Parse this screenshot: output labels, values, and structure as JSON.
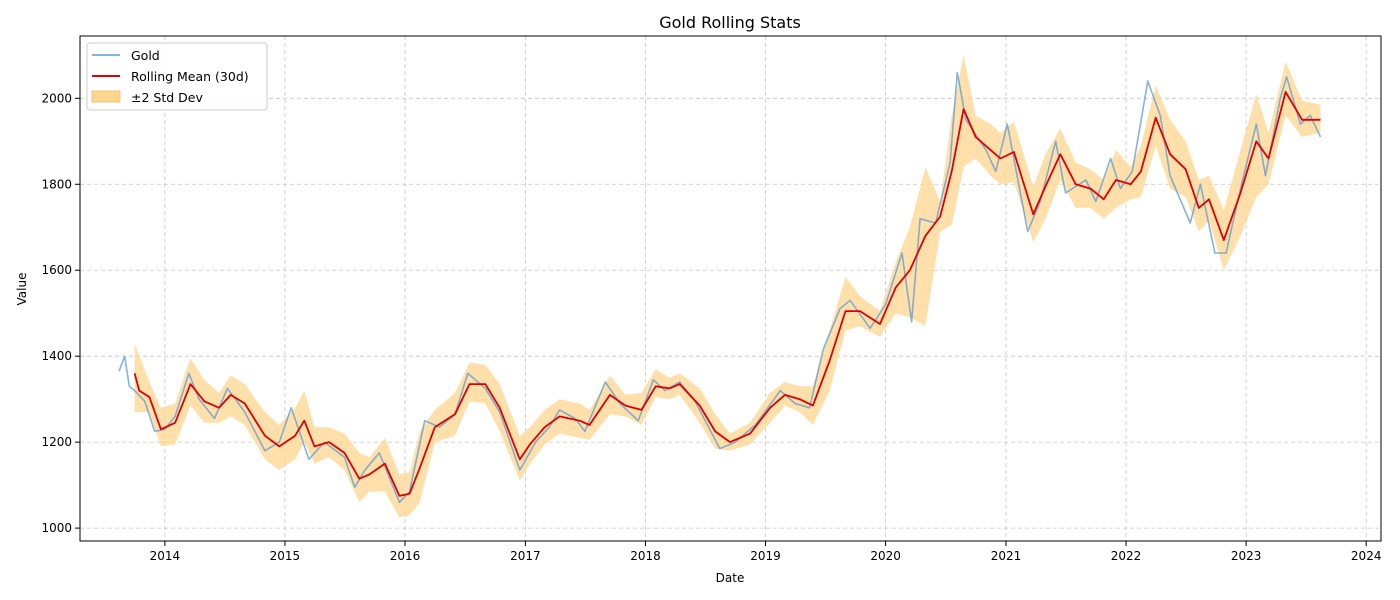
{
  "chart_data": {
    "type": "line",
    "title": "Gold Rolling Stats",
    "xlabel": "Date",
    "ylabel": "Value",
    "xlim": [
      "2013-04-18",
      "2024-02-15"
    ],
    "ylim": [
      970,
      2145
    ],
    "x_ticks": [
      "2014",
      "2015",
      "2016",
      "2017",
      "2018",
      "2019",
      "2020",
      "2021",
      "2022",
      "2023",
      "2024"
    ],
    "y_ticks": [
      1000,
      1200,
      1400,
      1600,
      1800,
      2000
    ],
    "grid": true,
    "legend_position": "top-left",
    "colors": {
      "price": "#5a9bd4",
      "mean": "#e00000",
      "band": "#ffd58f"
    },
    "series": [
      {
        "name": "Gold",
        "kind": "price-line",
        "points": [
          [
            "2013-08-15",
            1365
          ],
          [
            "2013-09-01",
            1400
          ],
          [
            "2013-09-15",
            1330
          ],
          [
            "2013-10-01",
            1320
          ],
          [
            "2013-11-01",
            1295
          ],
          [
            "2013-12-01",
            1225
          ],
          [
            "2014-01-01",
            1230
          ],
          [
            "2014-02-01",
            1260
          ],
          [
            "2014-03-15",
            1360
          ],
          [
            "2014-04-15",
            1300
          ],
          [
            "2014-06-01",
            1255
          ],
          [
            "2014-07-10",
            1325
          ],
          [
            "2014-09-01",
            1270
          ],
          [
            "2014-11-01",
            1180
          ],
          [
            "2014-12-15",
            1200
          ],
          [
            "2015-01-20",
            1280
          ],
          [
            "2015-03-15",
            1160
          ],
          [
            "2015-05-01",
            1200
          ],
          [
            "2015-07-01",
            1165
          ],
          [
            "2015-08-01",
            1095
          ],
          [
            "2015-09-01",
            1135
          ],
          [
            "2015-10-15",
            1175
          ],
          [
            "2015-12-15",
            1060
          ],
          [
            "2016-01-15",
            1085
          ],
          [
            "2016-03-01",
            1250
          ],
          [
            "2016-04-15",
            1235
          ],
          [
            "2016-06-01",
            1265
          ],
          [
            "2016-07-10",
            1360
          ],
          [
            "2016-09-01",
            1325
          ],
          [
            "2016-10-15",
            1270
          ],
          [
            "2016-12-15",
            1135
          ],
          [
            "2017-02-01",
            1200
          ],
          [
            "2017-03-15",
            1235
          ],
          [
            "2017-04-15",
            1275
          ],
          [
            "2017-06-01",
            1255
          ],
          [
            "2017-07-01",
            1225
          ],
          [
            "2017-09-01",
            1340
          ],
          [
            "2017-10-15",
            1290
          ],
          [
            "2017-12-10",
            1250
          ],
          [
            "2018-01-25",
            1345
          ],
          [
            "2018-03-01",
            1320
          ],
          [
            "2018-04-15",
            1340
          ],
          [
            "2018-06-01",
            1295
          ],
          [
            "2018-08-15",
            1185
          ],
          [
            "2018-10-01",
            1200
          ],
          [
            "2018-12-01",
            1240
          ],
          [
            "2019-02-15",
            1320
          ],
          [
            "2019-04-01",
            1290
          ],
          [
            "2019-05-15",
            1280
          ],
          [
            "2019-06-25",
            1415
          ],
          [
            "2019-08-15",
            1510
          ],
          [
            "2019-09-15",
            1530
          ],
          [
            "2019-11-15",
            1465
          ],
          [
            "2020-01-01",
            1520
          ],
          [
            "2020-02-20",
            1640
          ],
          [
            "2020-03-20",
            1480
          ],
          [
            "2020-04-15",
            1720
          ],
          [
            "2020-06-01",
            1710
          ],
          [
            "2020-07-15",
            1850
          ],
          [
            "2020-08-06",
            2060
          ],
          [
            "2020-09-01",
            1950
          ],
          [
            "2020-11-01",
            1880
          ],
          [
            "2020-12-01",
            1830
          ],
          [
            "2021-01-05",
            1940
          ],
          [
            "2021-03-08",
            1690
          ],
          [
            "2021-04-15",
            1760
          ],
          [
            "2021-06-01",
            1900
          ],
          [
            "2021-07-01",
            1780
          ],
          [
            "2021-09-01",
            1810
          ],
          [
            "2021-10-01",
            1760
          ],
          [
            "2021-11-15",
            1860
          ],
          [
            "2021-12-15",
            1790
          ],
          [
            "2022-01-20",
            1830
          ],
          [
            "2022-03-08",
            2040
          ],
          [
            "2022-04-15",
            1960
          ],
          [
            "2022-05-15",
            1820
          ],
          [
            "2022-07-15",
            1710
          ],
          [
            "2022-08-15",
            1800
          ],
          [
            "2022-09-28",
            1640
          ],
          [
            "2022-11-01",
            1640
          ],
          [
            "2022-12-15",
            1790
          ],
          [
            "2023-02-01",
            1940
          ],
          [
            "2023-03-01",
            1820
          ],
          [
            "2023-04-15",
            2000
          ],
          [
            "2023-05-04",
            2050
          ],
          [
            "2023-06-15",
            1940
          ],
          [
            "2023-07-15",
            1960
          ],
          [
            "2023-08-15",
            1910
          ]
        ]
      },
      {
        "name": "Rolling Mean (30d)",
        "kind": "mean-line",
        "points": [
          [
            "2013-10-01",
            1360
          ],
          [
            "2013-10-15",
            1320
          ],
          [
            "2013-11-15",
            1305
          ],
          [
            "2013-12-20",
            1230
          ],
          [
            "2014-02-01",
            1245
          ],
          [
            "2014-03-20",
            1335
          ],
          [
            "2014-05-01",
            1295
          ],
          [
            "2014-06-15",
            1280
          ],
          [
            "2014-07-20",
            1310
          ],
          [
            "2014-09-01",
            1290
          ],
          [
            "2014-11-01",
            1215
          ],
          [
            "2014-12-15",
            1190
          ],
          [
            "2015-02-01",
            1215
          ],
          [
            "2015-03-01",
            1250
          ],
          [
            "2015-04-01",
            1190
          ],
          [
            "2015-05-15",
            1200
          ],
          [
            "2015-07-01",
            1175
          ],
          [
            "2015-08-15",
            1115
          ],
          [
            "2015-09-15",
            1125
          ],
          [
            "2015-11-01",
            1150
          ],
          [
            "2015-12-15",
            1075
          ],
          [
            "2016-01-15",
            1080
          ],
          [
            "2016-02-15",
            1140
          ],
          [
            "2016-04-01",
            1235
          ],
          [
            "2016-06-01",
            1265
          ],
          [
            "2016-07-15",
            1335
          ],
          [
            "2016-09-01",
            1335
          ],
          [
            "2016-10-15",
            1280
          ],
          [
            "2016-12-15",
            1160
          ],
          [
            "2017-01-15",
            1195
          ],
          [
            "2017-03-01",
            1235
          ],
          [
            "2017-04-15",
            1260
          ],
          [
            "2017-06-15",
            1250
          ],
          [
            "2017-07-15",
            1240
          ],
          [
            "2017-09-15",
            1310
          ],
          [
            "2017-11-01",
            1285
          ],
          [
            "2017-12-20",
            1275
          ],
          [
            "2018-02-01",
            1330
          ],
          [
            "2018-03-15",
            1325
          ],
          [
            "2018-04-15",
            1335
          ],
          [
            "2018-06-15",
            1285
          ],
          [
            "2018-08-01",
            1225
          ],
          [
            "2018-09-15",
            1200
          ],
          [
            "2018-11-15",
            1220
          ],
          [
            "2019-01-15",
            1280
          ],
          [
            "2019-03-01",
            1310
          ],
          [
            "2019-04-15",
            1300
          ],
          [
            "2019-05-25",
            1285
          ],
          [
            "2019-07-15",
            1390
          ],
          [
            "2019-09-01",
            1505
          ],
          [
            "2019-10-15",
            1505
          ],
          [
            "2019-12-15",
            1475
          ],
          [
            "2020-02-01",
            1560
          ],
          [
            "2020-03-15",
            1600
          ],
          [
            "2020-05-01",
            1680
          ],
          [
            "2020-06-15",
            1725
          ],
          [
            "2020-07-20",
            1830
          ],
          [
            "2020-08-25",
            1975
          ],
          [
            "2020-10-01",
            1910
          ],
          [
            "2020-11-15",
            1880
          ],
          [
            "2020-12-15",
            1860
          ],
          [
            "2021-01-25",
            1875
          ],
          [
            "2021-03-25",
            1730
          ],
          [
            "2021-05-01",
            1795
          ],
          [
            "2021-06-15",
            1870
          ],
          [
            "2021-08-01",
            1800
          ],
          [
            "2021-09-15",
            1790
          ],
          [
            "2021-10-25",
            1765
          ],
          [
            "2021-12-01",
            1810
          ],
          [
            "2022-01-15",
            1800
          ],
          [
            "2022-02-15",
            1830
          ],
          [
            "2022-04-01",
            1955
          ],
          [
            "2022-05-15",
            1870
          ],
          [
            "2022-07-01",
            1835
          ],
          [
            "2022-08-10",
            1745
          ],
          [
            "2022-09-10",
            1765
          ],
          [
            "2022-10-25",
            1670
          ],
          [
            "2022-12-15",
            1780
          ],
          [
            "2023-02-01",
            1900
          ],
          [
            "2023-03-10",
            1860
          ],
          [
            "2023-05-01",
            2015
          ],
          [
            "2023-06-20",
            1950
          ],
          [
            "2023-08-15",
            1950
          ]
        ]
      },
      {
        "name": "±2 Std Dev",
        "kind": "band",
        "points": [
          [
            "2013-10-01",
            1270,
            1430
          ],
          [
            "2013-11-15",
            1270,
            1340
          ],
          [
            "2013-12-20",
            1190,
            1280
          ],
          [
            "2014-02-01",
            1195,
            1290
          ],
          [
            "2014-03-20",
            1285,
            1395
          ],
          [
            "2014-05-01",
            1245,
            1345
          ],
          [
            "2014-06-15",
            1245,
            1315
          ],
          [
            "2014-07-20",
            1260,
            1355
          ],
          [
            "2014-09-01",
            1240,
            1335
          ],
          [
            "2014-11-01",
            1160,
            1270
          ],
          [
            "2014-12-15",
            1135,
            1240
          ],
          [
            "2015-02-01",
            1160,
            1280
          ],
          [
            "2015-03-01",
            1200,
            1320
          ],
          [
            "2015-04-01",
            1150,
            1235
          ],
          [
            "2015-05-15",
            1165,
            1235
          ],
          [
            "2015-07-01",
            1135,
            1220
          ],
          [
            "2015-08-15",
            1060,
            1175
          ],
          [
            "2015-09-15",
            1085,
            1165
          ],
          [
            "2015-11-01",
            1085,
            1210
          ],
          [
            "2015-12-15",
            1025,
            1125
          ],
          [
            "2016-01-15",
            1030,
            1130
          ],
          [
            "2016-02-15",
            1060,
            1225
          ],
          [
            "2016-04-01",
            1200,
            1275
          ],
          [
            "2016-06-01",
            1215,
            1315
          ],
          [
            "2016-07-15",
            1295,
            1385
          ],
          [
            "2016-09-01",
            1290,
            1380
          ],
          [
            "2016-10-15",
            1225,
            1335
          ],
          [
            "2016-12-15",
            1110,
            1215
          ],
          [
            "2017-01-15",
            1150,
            1235
          ],
          [
            "2017-03-01",
            1195,
            1275
          ],
          [
            "2017-04-15",
            1220,
            1300
          ],
          [
            "2017-06-15",
            1210,
            1290
          ],
          [
            "2017-07-15",
            1205,
            1275
          ],
          [
            "2017-09-15",
            1265,
            1355
          ],
          [
            "2017-11-01",
            1260,
            1310
          ],
          [
            "2017-12-20",
            1240,
            1315
          ],
          [
            "2018-02-01",
            1305,
            1370
          ],
          [
            "2018-03-15",
            1300,
            1350
          ],
          [
            "2018-04-15",
            1310,
            1360
          ],
          [
            "2018-06-15",
            1245,
            1325
          ],
          [
            "2018-08-01",
            1185,
            1265
          ],
          [
            "2018-09-15",
            1180,
            1220
          ],
          [
            "2018-11-15",
            1195,
            1245
          ],
          [
            "2019-01-15",
            1245,
            1315
          ],
          [
            "2019-03-01",
            1285,
            1340
          ],
          [
            "2019-04-15",
            1270,
            1330
          ],
          [
            "2019-05-25",
            1240,
            1330
          ],
          [
            "2019-07-15",
            1320,
            1460
          ],
          [
            "2019-09-01",
            1460,
            1585
          ],
          [
            "2019-10-15",
            1470,
            1540
          ],
          [
            "2019-12-15",
            1445,
            1505
          ],
          [
            "2020-02-01",
            1500,
            1620
          ],
          [
            "2020-03-15",
            1490,
            1700
          ],
          [
            "2020-05-01",
            1470,
            1840
          ],
          [
            "2020-06-15",
            1690,
            1760
          ],
          [
            "2020-07-20",
            1705,
            1960
          ],
          [
            "2020-08-25",
            1840,
            2100
          ],
          [
            "2020-10-01",
            1860,
            1960
          ],
          [
            "2020-11-15",
            1820,
            1940
          ],
          [
            "2020-12-15",
            1800,
            1920
          ],
          [
            "2021-01-25",
            1805,
            1945
          ],
          [
            "2021-03-25",
            1665,
            1795
          ],
          [
            "2021-05-01",
            1720,
            1870
          ],
          [
            "2021-06-15",
            1810,
            1930
          ],
          [
            "2021-08-01",
            1745,
            1850
          ],
          [
            "2021-09-15",
            1745,
            1835
          ],
          [
            "2021-10-25",
            1720,
            1810
          ],
          [
            "2021-12-01",
            1745,
            1880
          ],
          [
            "2022-01-15",
            1765,
            1840
          ],
          [
            "2022-02-15",
            1770,
            1890
          ],
          [
            "2022-04-01",
            1890,
            2030
          ],
          [
            "2022-05-15",
            1790,
            1950
          ],
          [
            "2022-07-01",
            1770,
            1900
          ],
          [
            "2022-08-10",
            1690,
            1810
          ],
          [
            "2022-09-10",
            1715,
            1820
          ],
          [
            "2022-10-25",
            1600,
            1740
          ],
          [
            "2022-12-15",
            1680,
            1880
          ],
          [
            "2023-02-01",
            1770,
            2010
          ],
          [
            "2023-03-10",
            1800,
            1920
          ],
          [
            "2023-05-01",
            1960,
            2085
          ],
          [
            "2023-06-20",
            1910,
            1995
          ],
          [
            "2023-08-15",
            1920,
            1985
          ]
        ]
      }
    ]
  }
}
